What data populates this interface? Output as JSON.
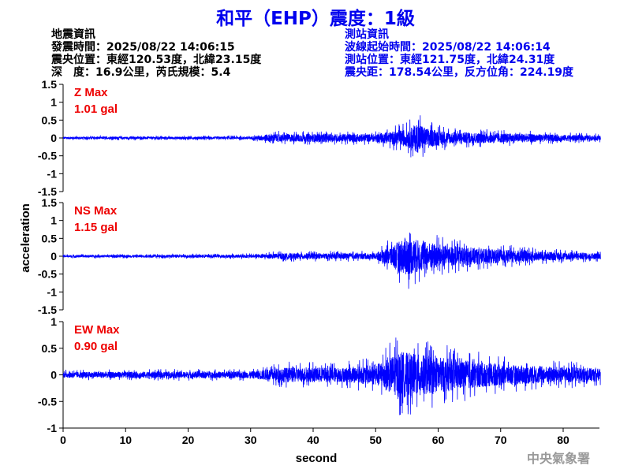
{
  "header": {
    "title": "和平（EHP）震度：1級",
    "quake_info": {
      "heading": "地震資訊",
      "origin_time": "發震時間：2025/08/22 14:06:15",
      "epicenter": "震央位置：東經120.53度，北緯23.15度",
      "depth_magnitude": "深　度：16.9公里，芮氏規模：5.4"
    },
    "station_info": {
      "heading": "測站資訊",
      "wave_start": "波線起始時間：2025/08/22 14:06:14",
      "station_location": "測站位置：東經121.75度，北緯24.31度",
      "distance_azimuth": "震央距：178.54公里，反方位角：224.19度"
    }
  },
  "watermark": "中央氣象署",
  "chart_data": [
    {
      "type": "line",
      "component": "Z",
      "max_label": "Z Max",
      "max_value": "1.01 gal",
      "ylim": [
        -1.5,
        1.5
      ],
      "yticks": [
        "1.5",
        "1",
        "0.5",
        "0",
        "-0.5",
        "-1",
        "-1.5"
      ],
      "envelope": [
        [
          0,
          0.06
        ],
        [
          30,
          0.07
        ],
        [
          33,
          0.2
        ],
        [
          50,
          0.2
        ],
        [
          55,
          0.45
        ],
        [
          57,
          0.8
        ],
        [
          58,
          0.5
        ],
        [
          62,
          0.3
        ],
        [
          86,
          0.12
        ]
      ],
      "color": "#0000ff"
    },
    {
      "type": "line",
      "component": "NS",
      "max_label": "NS Max",
      "max_value": "1.15 gal",
      "ylim": [
        -1.5,
        1.5
      ],
      "yticks": [
        "1.5",
        "1",
        "0.5",
        "0",
        "-0.5",
        "-1",
        "-1.5"
      ],
      "envelope": [
        [
          0,
          0.06
        ],
        [
          30,
          0.08
        ],
        [
          35,
          0.15
        ],
        [
          50,
          0.15
        ],
        [
          52,
          0.45
        ],
        [
          55,
          1.0
        ],
        [
          57,
          0.8
        ],
        [
          62,
          0.5
        ],
        [
          75,
          0.25
        ],
        [
          86,
          0.15
        ]
      ],
      "color": "#0000ff"
    },
    {
      "type": "line",
      "component": "EW",
      "max_label": "EW Max",
      "max_value": "0.90 gal",
      "ylim": [
        -1,
        1
      ],
      "yticks": [
        "1",
        "0.5",
        "0",
        "-0.5",
        "-1"
      ],
      "envelope": [
        [
          0,
          0.1
        ],
        [
          30,
          0.12
        ],
        [
          35,
          0.25
        ],
        [
          45,
          0.25
        ],
        [
          50,
          0.35
        ],
        [
          54,
          0.8
        ],
        [
          57,
          0.7
        ],
        [
          62,
          0.55
        ],
        [
          70,
          0.35
        ],
        [
          86,
          0.22
        ]
      ],
      "color": "#0000ff"
    }
  ],
  "x_axis": {
    "label": "second",
    "range": [
      0,
      86
    ],
    "ticks": [
      "0",
      "10",
      "20",
      "30",
      "40",
      "50",
      "60",
      "70",
      "80"
    ]
  },
  "y_axis": {
    "label": "acceleration"
  }
}
